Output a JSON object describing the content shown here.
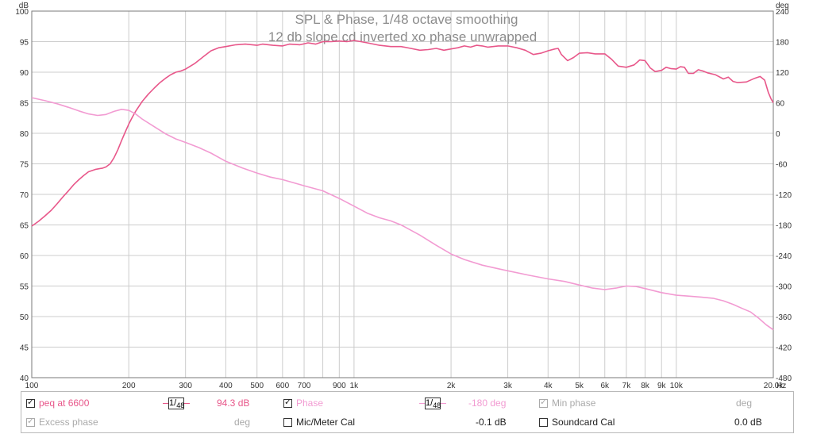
{
  "chart_data": {
    "type": "line",
    "title": "SPL & Phase, 1/48 octave smoothing",
    "subtitle": "12 db slope cd inverted xo phase unwrapped",
    "x_scale": "log",
    "xlim": [
      100,
      20000
    ],
    "ylim_left": [
      40,
      100
    ],
    "ylim_right": [
      -480,
      240
    ],
    "left_unit": "dB",
    "right_unit": "deg",
    "x_unit": "Hz",
    "x_ticks": [
      {
        "v": 100,
        "label": "100"
      },
      {
        "v": 200,
        "label": "200"
      },
      {
        "v": 300,
        "label": "300"
      },
      {
        "v": 400,
        "label": "400"
      },
      {
        "v": 500,
        "label": "500"
      },
      {
        "v": 600,
        "label": "600"
      },
      {
        "v": 700,
        "label": "700"
      },
      {
        "v": 900,
        "label": "900"
      },
      {
        "v": 1000,
        "label": "1k"
      },
      {
        "v": 2000,
        "label": "2k"
      },
      {
        "v": 3000,
        "label": "3k"
      },
      {
        "v": 4000,
        "label": "4k"
      },
      {
        "v": 5000,
        "label": "5k"
      },
      {
        "v": 6000,
        "label": "6k"
      },
      {
        "v": 7000,
        "label": "7k"
      },
      {
        "v": 8000,
        "label": "8k"
      },
      {
        "v": 9000,
        "label": "9k"
      },
      {
        "v": 10000,
        "label": "10k"
      },
      {
        "v": 20000,
        "label": "20.0k"
      }
    ],
    "x_gridlines": [
      100,
      200,
      300,
      400,
      500,
      600,
      700,
      800,
      900,
      1000,
      2000,
      3000,
      4000,
      5000,
      6000,
      7000,
      8000,
      9000,
      10000,
      20000
    ],
    "y_left_ticks": [
      40,
      45,
      50,
      55,
      60,
      65,
      70,
      75,
      80,
      85,
      90,
      95,
      100
    ],
    "y_right_ticks": [
      -480,
      -420,
      -360,
      -300,
      -240,
      -180,
      -120,
      -60,
      0,
      60,
      120,
      180,
      240
    ],
    "grid": true,
    "series": [
      {
        "name": "peq at 6600",
        "axis": "left",
        "color": "#e8578a",
        "points": [
          [
            100,
            64.8
          ],
          [
            105,
            65.6
          ],
          [
            110,
            66.5
          ],
          [
            115,
            67.4
          ],
          [
            120,
            68.5
          ],
          [
            125,
            69.6
          ],
          [
            130,
            70.6
          ],
          [
            135,
            71.6
          ],
          [
            140,
            72.4
          ],
          [
            145,
            73.1
          ],
          [
            150,
            73.7
          ],
          [
            158,
            74.1
          ],
          [
            166,
            74.3
          ],
          [
            170,
            74.5
          ],
          [
            175,
            75.0
          ],
          [
            180,
            76.0
          ],
          [
            185,
            77.3
          ],
          [
            190,
            78.8
          ],
          [
            195,
            80.2
          ],
          [
            200,
            81.5
          ],
          [
            205,
            82.6
          ],
          [
            210,
            83.6
          ],
          [
            220,
            85.2
          ],
          [
            230,
            86.4
          ],
          [
            240,
            87.4
          ],
          [
            250,
            88.3
          ],
          [
            260,
            89.0
          ],
          [
            270,
            89.6
          ],
          [
            280,
            90.0
          ],
          [
            290,
            90.2
          ],
          [
            300,
            90.5
          ],
          [
            320,
            91.4
          ],
          [
            340,
            92.5
          ],
          [
            360,
            93.5
          ],
          [
            380,
            94.0
          ],
          [
            400,
            94.2
          ],
          [
            430,
            94.5
          ],
          [
            460,
            94.6
          ],
          [
            500,
            94.4
          ],
          [
            520,
            94.6
          ],
          [
            560,
            94.4
          ],
          [
            600,
            94.3
          ],
          [
            630,
            94.6
          ],
          [
            680,
            94.5
          ],
          [
            720,
            94.8
          ],
          [
            760,
            94.6
          ],
          [
            800,
            95.0
          ],
          [
            850,
            95.0
          ],
          [
            900,
            95.1
          ],
          [
            950,
            95.0
          ],
          [
            1000,
            95.2
          ],
          [
            1050,
            95.0
          ],
          [
            1100,
            94.8
          ],
          [
            1200,
            94.4
          ],
          [
            1300,
            94.2
          ],
          [
            1400,
            94.2
          ],
          [
            1500,
            93.9
          ],
          [
            1600,
            93.6
          ],
          [
            1700,
            93.7
          ],
          [
            1800,
            93.9
          ],
          [
            1900,
            93.6
          ],
          [
            2000,
            93.8
          ],
          [
            2100,
            94.0
          ],
          [
            2200,
            94.3
          ],
          [
            2300,
            94.1
          ],
          [
            2400,
            94.4
          ],
          [
            2500,
            94.3
          ],
          [
            2600,
            94.1
          ],
          [
            2800,
            94.3
          ],
          [
            3000,
            94.3
          ],
          [
            3200,
            94.0
          ],
          [
            3400,
            93.6
          ],
          [
            3600,
            92.9
          ],
          [
            3800,
            93.1
          ],
          [
            4000,
            93.5
          ],
          [
            4200,
            93.8
          ],
          [
            4300,
            93.9
          ],
          [
            4400,
            92.9
          ],
          [
            4600,
            91.9
          ],
          [
            4800,
            92.4
          ],
          [
            5000,
            93.1
          ],
          [
            5300,
            93.2
          ],
          [
            5600,
            93.0
          ],
          [
            6000,
            93.0
          ],
          [
            6300,
            92.1
          ],
          [
            6600,
            91.0
          ],
          [
            7000,
            90.8
          ],
          [
            7400,
            91.2
          ],
          [
            7700,
            92.0
          ],
          [
            8000,
            91.9
          ],
          [
            8300,
            90.7
          ],
          [
            8600,
            90.1
          ],
          [
            9000,
            90.3
          ],
          [
            9300,
            90.8
          ],
          [
            9600,
            90.6
          ],
          [
            10000,
            90.5
          ],
          [
            10300,
            90.9
          ],
          [
            10600,
            90.8
          ],
          [
            10900,
            89.8
          ],
          [
            11300,
            89.8
          ],
          [
            11700,
            90.4
          ],
          [
            12100,
            90.2
          ],
          [
            12500,
            89.9
          ],
          [
            13200,
            89.6
          ],
          [
            14000,
            88.9
          ],
          [
            14500,
            89.2
          ],
          [
            15000,
            88.5
          ],
          [
            15500,
            88.3
          ],
          [
            16500,
            88.4
          ],
          [
            17500,
            89.0
          ],
          [
            18200,
            89.3
          ],
          [
            18800,
            88.7
          ],
          [
            19300,
            86.7
          ],
          [
            19700,
            85.6
          ],
          [
            20000,
            85.0
          ]
        ]
      },
      {
        "name": "Phase",
        "axis": "right",
        "color": "#f29bd2",
        "points": [
          [
            100,
            70
          ],
          [
            110,
            64
          ],
          [
            120,
            58
          ],
          [
            130,
            51
          ],
          [
            140,
            44
          ],
          [
            150,
            38
          ],
          [
            160,
            35
          ],
          [
            170,
            37
          ],
          [
            180,
            43
          ],
          [
            190,
            47
          ],
          [
            200,
            45
          ],
          [
            210,
            38
          ],
          [
            220,
            28
          ],
          [
            240,
            13
          ],
          [
            260,
            -1
          ],
          [
            280,
            -11
          ],
          [
            300,
            -18
          ],
          [
            330,
            -28
          ],
          [
            360,
            -39
          ],
          [
            400,
            -55
          ],
          [
            450,
            -68
          ],
          [
            500,
            -78
          ],
          [
            550,
            -86
          ],
          [
            600,
            -91
          ],
          [
            700,
            -103
          ],
          [
            800,
            -113
          ],
          [
            900,
            -128
          ],
          [
            1000,
            -143
          ],
          [
            1100,
            -157
          ],
          [
            1200,
            -166
          ],
          [
            1300,
            -172
          ],
          [
            1400,
            -180
          ],
          [
            1600,
            -200
          ],
          [
            1800,
            -220
          ],
          [
            2000,
            -237
          ],
          [
            2200,
            -248
          ],
          [
            2500,
            -259
          ],
          [
            2800,
            -266
          ],
          [
            3000,
            -270
          ],
          [
            3500,
            -279
          ],
          [
            4000,
            -286
          ],
          [
            4500,
            -291
          ],
          [
            5000,
            -298
          ],
          [
            5500,
            -304
          ],
          [
            6000,
            -307
          ],
          [
            6500,
            -304
          ],
          [
            7000,
            -300
          ],
          [
            7500,
            -301
          ],
          [
            8000,
            -305
          ],
          [
            9000,
            -313
          ],
          [
            10000,
            -318
          ],
          [
            11000,
            -320
          ],
          [
            12000,
            -322
          ],
          [
            13000,
            -324
          ],
          [
            14000,
            -329
          ],
          [
            15000,
            -336
          ],
          [
            16000,
            -344
          ],
          [
            17000,
            -351
          ],
          [
            18000,
            -363
          ],
          [
            19000,
            -376
          ],
          [
            20000,
            -386
          ]
        ]
      }
    ]
  },
  "legend": {
    "row1": {
      "peq_label": "peq at 6600",
      "peq_frac_num": "1/",
      "peq_frac_den": "48",
      "peq_value": "94.3 dB",
      "phase_label": "Phase",
      "phase_frac_num": "1/",
      "phase_frac_den": "48",
      "phase_value": "-180 deg",
      "minphase_label": "Min phase",
      "minphase_unit": "deg"
    },
    "row2": {
      "excess_label": "Excess phase",
      "excess_unit": "deg",
      "micmeter_label": "Mic/Meter Cal",
      "micmeter_value": "-0.1 dB",
      "soundcard_label": "Soundcard Cal",
      "soundcard_value": "0.0 dB"
    },
    "check_glyph": "✓",
    "colors": {
      "peq": "#e8578a",
      "phase": "#f29bd2",
      "disabled": "#aaaaaa"
    }
  }
}
